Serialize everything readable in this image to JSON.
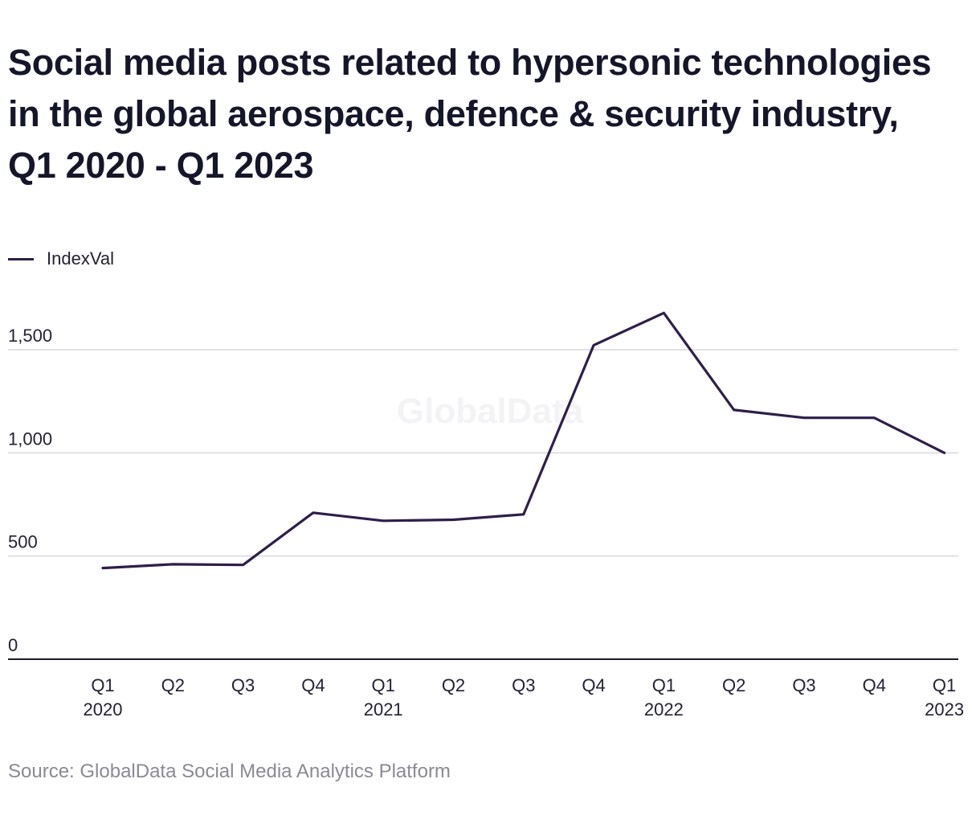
{
  "chart_data": {
    "type": "line",
    "title": "Social media posts related to hypersonic technologies in the global aerospace, defence & security industry, Q1 2020 - Q1 2023",
    "xlabel": "",
    "ylabel": "",
    "categories": [
      [
        "Q1",
        "2020"
      ],
      [
        "Q2",
        ""
      ],
      [
        "Q3",
        ""
      ],
      [
        "Q4",
        ""
      ],
      [
        "Q1",
        "2021"
      ],
      [
        "Q2",
        ""
      ],
      [
        "Q3",
        ""
      ],
      [
        "Q4",
        ""
      ],
      [
        "Q1",
        "2022"
      ],
      [
        "Q2",
        ""
      ],
      [
        "Q3",
        ""
      ],
      [
        "Q4",
        ""
      ],
      [
        "Q1",
        "2023"
      ]
    ],
    "series": [
      {
        "name": "IndexVal",
        "color": "#2e1f4a",
        "values": [
          442,
          460,
          457,
          710,
          671,
          676,
          702,
          1522,
          1678,
          1208,
          1170,
          1170,
          1000
        ]
      }
    ],
    "ylim": [
      0,
      1700
    ],
    "yticks": [
      0,
      500,
      1000,
      1500
    ],
    "ytick_labels": [
      "0",
      "500",
      "1,000",
      "1,500"
    ],
    "grid": true,
    "legend_position": "top-left",
    "watermark": "GlobalData"
  },
  "source": "Source: GlobalData Social Media Analytics Platform"
}
